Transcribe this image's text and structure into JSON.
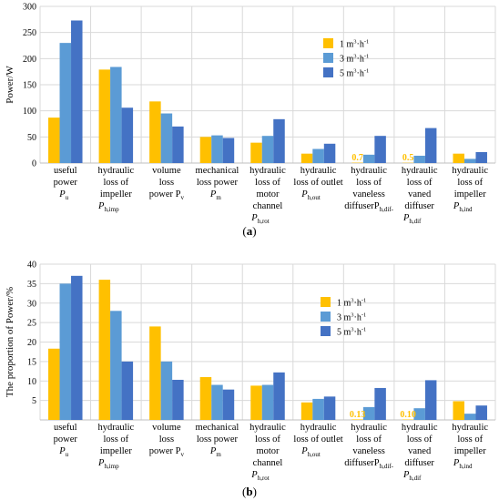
{
  "colors": {
    "s1": "#FFC000",
    "s2": "#5B9BD5",
    "s3": "#4472C4"
  },
  "legend": {
    "s1": {
      "prefix": "1 m",
      "sup1": "3",
      "mid": "·h",
      "sup2": "-1"
    },
    "s2": {
      "prefix": "3 m",
      "sup1": "3",
      "mid": "·h",
      "sup2": "-1"
    },
    "s3": {
      "prefix": "5 m",
      "sup1": "3",
      "mid": "·h",
      "sup2": "-1"
    }
  },
  "categories": [
    {
      "lines": [
        "useful",
        "power"
      ],
      "sym": "P",
      "sub": "u"
    },
    {
      "lines": [
        "hydraulic",
        "loss of",
        "impeller"
      ],
      "sym": "P",
      "sub": "h,imp"
    },
    {
      "lines": [
        "volume",
        "loss",
        "power P"
      ],
      "inlineSub": "v"
    },
    {
      "lines": [
        "mechanical",
        "loss power"
      ],
      "sym": "P",
      "sub": "m"
    },
    {
      "lines": [
        "hydraulic",
        "loss of",
        "motor",
        "channel"
      ],
      "sym": "P",
      "sub": "h,rot"
    },
    {
      "lines": [
        "hydraulic",
        "loss of outlet"
      ],
      "sym": "P",
      "sub": "h,out"
    },
    {
      "lines": [
        "hydraulic",
        "loss of",
        "vaneless",
        "diffuserP"
      ],
      "inlineSub": "h,dif-"
    },
    {
      "lines": [
        "hydraulic",
        "loss of",
        "vaned",
        "diffuser"
      ],
      "sym": "P",
      "sub": "h,dif"
    },
    {
      "lines": [
        "hydraulic",
        "loss of",
        "impeller"
      ],
      "sym": "P",
      "sub": "h,ind"
    }
  ],
  "chart_data": [
    {
      "type": "bar",
      "panel_label": "(a)",
      "ylabel": "Power/W",
      "ylim": [
        0,
        300
      ],
      "yticks": [
        0,
        50,
        100,
        150,
        200,
        250,
        300
      ],
      "grid": true,
      "legend_position": "upper-right",
      "series": [
        {
          "name": "1 m³·h⁻¹",
          "values": [
            87,
            179,
            118,
            50,
            39,
            18,
            0.7,
            0.5,
            18
          ]
        },
        {
          "name": "3 m³·h⁻¹",
          "values": [
            230,
            184,
            95,
            53,
            52,
            27,
            16,
            14,
            8
          ]
        },
        {
          "name": "5 m³·h⁻¹",
          "values": [
            273,
            106,
            70,
            48,
            84,
            37,
            52,
            67,
            21
          ]
        }
      ],
      "data_labels": [
        {
          "category_index": 6,
          "series_index": 0,
          "text": "0.7"
        },
        {
          "category_index": 7,
          "series_index": 0,
          "text": "0.5"
        }
      ]
    },
    {
      "type": "bar",
      "panel_label": "(b)",
      "ylabel": "The proportion of Power/%",
      "ylim": [
        0,
        40
      ],
      "yticks": [
        5,
        10,
        15,
        20,
        25,
        30,
        35,
        40
      ],
      "grid": true,
      "legend_position": "upper-right",
      "series": [
        {
          "name": "1 m³·h⁻¹",
          "values": [
            18.3,
            36,
            24,
            11,
            8.8,
            4.5,
            0.13,
            0.1,
            4.8
          ]
        },
        {
          "name": "3 m³·h⁻¹",
          "values": [
            35,
            28,
            15,
            9,
            9,
            5.4,
            3.3,
            3,
            1.6
          ]
        },
        {
          "name": "5 m³·h⁻¹",
          "values": [
            37,
            15,
            10.3,
            7.8,
            12.2,
            6,
            8.2,
            10.2,
            3.7
          ]
        }
      ],
      "data_labels": [
        {
          "category_index": 6,
          "series_index": 0,
          "text": "0.13"
        },
        {
          "category_index": 7,
          "series_index": 0,
          "text": "0.10"
        }
      ]
    }
  ]
}
